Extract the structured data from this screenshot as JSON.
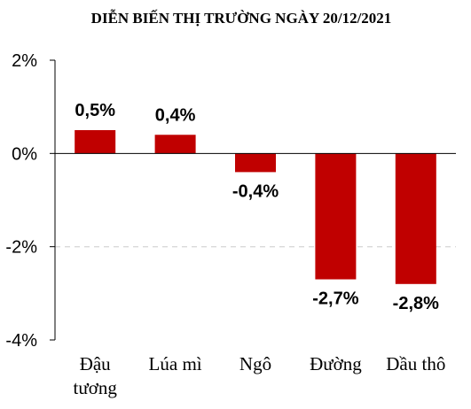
{
  "chart_data": {
    "type": "bar",
    "title": "DIỄN BIẾN THỊ TRƯỜNG NGÀY 20/12/2021",
    "categories": [
      [
        "Đậu",
        "tương"
      ],
      [
        "Lúa mì"
      ],
      [
        "Ngô"
      ],
      [
        "Đường"
      ],
      [
        "Dầu thô"
      ]
    ],
    "values": [
      0.5,
      0.4,
      -0.4,
      -2.7,
      -2.8
    ],
    "data_labels": [
      "0,5%",
      "0,4%",
      "-0,4%",
      "-2,7%",
      "-2,8%"
    ],
    "ylim": [
      -4,
      2
    ],
    "yticks": [
      2,
      0,
      -2,
      -4
    ],
    "ytick_labels": [
      "2%",
      "0%",
      "-2%",
      "-4%"
    ],
    "bar_color": "#c00000",
    "gridline": {
      "value": -2,
      "style": "dashed",
      "color": "#d9d9d9"
    },
    "legend": "none"
  }
}
